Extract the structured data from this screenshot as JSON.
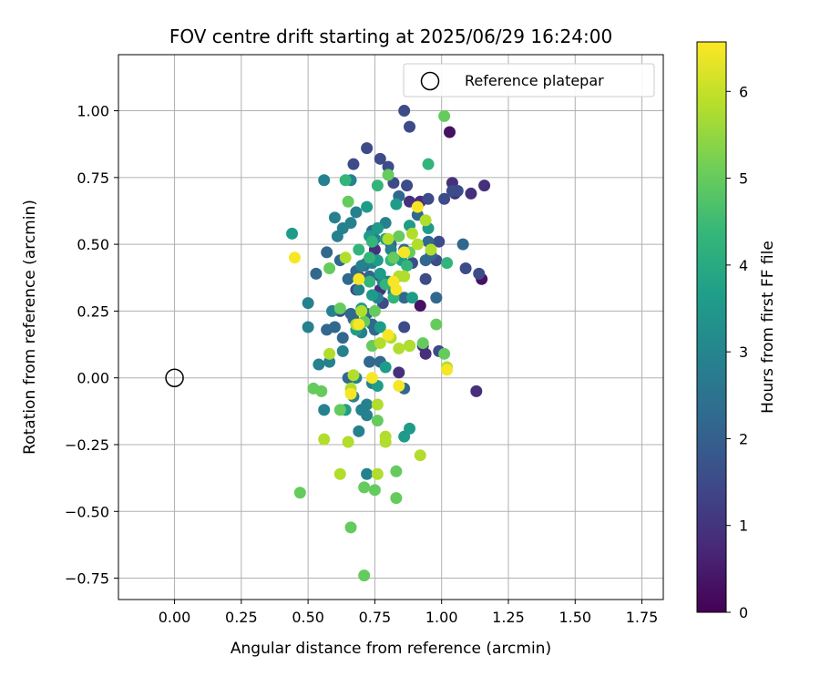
{
  "chart_data": {
    "type": "scatter",
    "title": "FOV centre drift starting at 2025/06/29 16:24:00",
    "xlabel": "Angular distance from reference (arcmin)",
    "ylabel": "Rotation from reference (arcmin)",
    "xlim": [
      -0.21,
      1.83
    ],
    "ylim": [
      -0.83,
      1.21
    ],
    "x_ticks": [
      0.0,
      0.25,
      0.5,
      0.75,
      1.0,
      1.25,
      1.5,
      1.75
    ],
    "x_tick_labels": [
      "0.00",
      "0.25",
      "0.50",
      "0.75",
      "1.00",
      "1.25",
      "1.50",
      "1.75"
    ],
    "y_ticks": [
      -0.75,
      -0.5,
      -0.25,
      0.0,
      0.25,
      0.5,
      0.75,
      1.0
    ],
    "y_tick_labels": [
      "−0.75",
      "−0.50",
      "−0.25",
      "0.00",
      "0.25",
      "0.50",
      "0.75",
      "1.00"
    ],
    "grid": true,
    "legend": {
      "placement": "upper-right",
      "entries": [
        "Reference platepar"
      ]
    },
    "reference_point": {
      "x": 0.0,
      "y": 0.0
    },
    "colorbar": {
      "label": "Hours from first FF file",
      "colormap": "viridis",
      "range": [
        0,
        6.57
      ],
      "ticks": [
        0,
        1,
        2,
        3,
        4,
        5,
        6
      ],
      "tick_labels": [
        "0",
        "1",
        "2",
        "3",
        "4",
        "5",
        "6"
      ]
    },
    "colormap_stops": [
      "#440154",
      "#482878",
      "#3e4989",
      "#31688e",
      "#26828e",
      "#1f9e89",
      "#35b779",
      "#6ece58",
      "#b5de2b",
      "#fde725"
    ],
    "series": [
      {
        "hours": 0.3,
        "points": [
          [
            1.03,
            0.92
          ],
          [
            0.92,
            0.27
          ],
          [
            1.15,
            0.37
          ]
        ]
      },
      {
        "hours": 0.9,
        "points": [
          [
            0.88,
            0.66
          ],
          [
            0.92,
            0.66
          ],
          [
            1.04,
            0.73
          ],
          [
            1.16,
            0.72
          ],
          [
            1.11,
            0.69
          ],
          [
            0.84,
            0.02
          ],
          [
            0.94,
            0.09
          ],
          [
            0.93,
            0.12
          ],
          [
            1.13,
            -0.05
          ],
          [
            0.75,
            0.48
          ],
          [
            0.69,
            0.38
          ],
          [
            0.77,
            0.33
          ],
          [
            1.05,
            0.69
          ]
        ]
      },
      {
        "hours": 1.5,
        "points": [
          [
            0.67,
            0.8
          ],
          [
            0.72,
            0.86
          ],
          [
            0.77,
            0.82
          ],
          [
            0.8,
            0.79
          ],
          [
            0.82,
            0.73
          ],
          [
            0.87,
            0.72
          ],
          [
            0.95,
            0.67
          ],
          [
            0.99,
            0.51
          ],
          [
            1.01,
            0.67
          ],
          [
            1.04,
            0.7
          ],
          [
            1.06,
            0.7
          ],
          [
            1.09,
            0.41
          ],
          [
            1.14,
            0.39
          ],
          [
            0.98,
            0.44
          ],
          [
            0.94,
            0.37
          ],
          [
            0.77,
            0.38
          ],
          [
            0.86,
            0.19
          ],
          [
            0.89,
            0.43
          ],
          [
            0.86,
            1.0
          ],
          [
            0.88,
            0.94
          ],
          [
            0.72,
            0.43
          ],
          [
            0.68,
            0.33
          ],
          [
            0.78,
            0.28
          ],
          [
            0.99,
            0.1
          ],
          [
            0.62,
            0.25
          ]
        ]
      },
      {
        "hours": 2.2,
        "points": [
          [
            0.57,
            0.47
          ],
          [
            0.53,
            0.39
          ],
          [
            0.62,
            0.44
          ],
          [
            0.68,
            0.4
          ],
          [
            0.71,
            0.42
          ],
          [
            0.84,
            0.68
          ],
          [
            0.91,
            0.61
          ],
          [
            0.86,
            0.3
          ],
          [
            0.73,
            0.38
          ],
          [
            0.65,
            0.37
          ],
          [
            0.66,
            0.24
          ],
          [
            0.6,
            0.19
          ],
          [
            0.67,
            0.22
          ],
          [
            0.72,
            0.24
          ],
          [
            0.74,
            0.2
          ],
          [
            0.63,
            0.15
          ],
          [
            0.75,
            0.18
          ],
          [
            0.57,
            0.18
          ],
          [
            0.65,
            0.0
          ],
          [
            0.77,
            0.06
          ],
          [
            0.73,
            0.06
          ],
          [
            0.86,
            -0.04
          ],
          [
            0.94,
            0.44
          ],
          [
            0.96,
            0.46
          ],
          [
            0.98,
            0.3
          ],
          [
            1.08,
            0.5
          ],
          [
            0.95,
            0.51
          ],
          [
            0.81,
            0.5
          ],
          [
            0.86,
            0.48
          ],
          [
            0.74,
            0.55
          ]
        ]
      },
      {
        "hours": 2.9,
        "points": [
          [
            0.66,
            0.74
          ],
          [
            0.56,
            0.74
          ],
          [
            0.68,
            0.62
          ],
          [
            0.66,
            0.58
          ],
          [
            0.6,
            0.6
          ],
          [
            0.63,
            0.56
          ],
          [
            0.61,
            0.53
          ],
          [
            0.75,
            0.52
          ],
          [
            0.7,
            0.42
          ],
          [
            0.59,
            0.25
          ],
          [
            0.5,
            0.28
          ],
          [
            0.5,
            0.19
          ],
          [
            0.63,
            0.1
          ],
          [
            0.58,
            0.06
          ],
          [
            0.54,
            0.05
          ],
          [
            0.68,
            0.0
          ],
          [
            0.74,
            -0.02
          ],
          [
            0.72,
            -0.1
          ],
          [
            0.7,
            -0.12
          ],
          [
            0.72,
            -0.14
          ],
          [
            0.69,
            -0.2
          ],
          [
            0.72,
            -0.36
          ],
          [
            0.56,
            -0.12
          ],
          [
            0.67,
            -0.07
          ],
          [
            0.79,
            0.58
          ],
          [
            0.76,
            0.56
          ],
          [
            0.81,
            0.48
          ],
          [
            0.74,
            0.43
          ],
          [
            0.8,
            0.36
          ],
          [
            0.82,
            0.32
          ],
          [
            0.76,
            0.3
          ],
          [
            0.7,
            0.17
          ],
          [
            0.78,
            0.36
          ],
          [
            0.69,
            0.33
          ]
        ]
      },
      {
        "hours": 3.6,
        "points": [
          [
            0.44,
            0.54
          ],
          [
            0.72,
            0.64
          ],
          [
            0.76,
            0.56
          ],
          [
            0.73,
            0.53
          ],
          [
            0.79,
            0.52
          ],
          [
            0.83,
            0.65
          ],
          [
            0.88,
            0.57
          ],
          [
            0.95,
            0.56
          ],
          [
            0.85,
            0.44
          ],
          [
            0.76,
            0.44
          ],
          [
            0.77,
            0.39
          ],
          [
            0.74,
            0.31
          ],
          [
            0.7,
            0.26
          ],
          [
            0.68,
            0.18
          ],
          [
            0.77,
            0.19
          ],
          [
            0.79,
            0.04
          ],
          [
            0.76,
            -0.03
          ],
          [
            0.64,
            -0.12
          ],
          [
            0.88,
            0.12
          ],
          [
            0.89,
            0.3
          ],
          [
            0.86,
            -0.22
          ],
          [
            0.88,
            -0.19
          ]
        ]
      },
      {
        "hours": 4.3,
        "points": [
          [
            0.76,
            0.72
          ],
          [
            0.95,
            0.8
          ],
          [
            0.64,
            0.74
          ],
          [
            1.02,
            0.43
          ],
          [
            0.73,
            0.45
          ],
          [
            0.73,
            0.36
          ],
          [
            0.81,
            0.44
          ],
          [
            0.69,
            0.48
          ],
          [
            0.79,
            0.35
          ],
          [
            0.82,
            0.3
          ],
          [
            0.87,
            0.42
          ],
          [
            0.74,
            0.51
          ]
        ]
      },
      {
        "hours": 5.0,
        "points": [
          [
            0.65,
            0.66
          ],
          [
            0.8,
            0.76
          ],
          [
            0.52,
            -0.04
          ],
          [
            0.55,
            -0.05
          ],
          [
            0.62,
            0.26
          ],
          [
            0.58,
            0.41
          ],
          [
            0.47,
            -0.43
          ],
          [
            0.66,
            -0.56
          ],
          [
            0.71,
            -0.74
          ],
          [
            0.71,
            -0.41
          ],
          [
            0.75,
            -0.42
          ],
          [
            0.83,
            -0.45
          ],
          [
            0.83,
            -0.35
          ],
          [
            0.76,
            -0.16
          ],
          [
            0.62,
            -0.12
          ],
          [
            0.93,
            0.13
          ],
          [
            0.98,
            0.2
          ],
          [
            1.01,
            0.09
          ],
          [
            0.75,
            0.25
          ],
          [
            0.82,
            0.45
          ],
          [
            0.84,
            0.53
          ],
          [
            1.01,
            0.98
          ],
          [
            0.71,
            0.21
          ],
          [
            0.74,
            0.12
          ],
          [
            0.88,
            0.47
          ]
        ]
      },
      {
        "hours": 5.8,
        "points": [
          [
            0.58,
            0.09
          ],
          [
            0.62,
            -0.36
          ],
          [
            0.56,
            -0.23
          ],
          [
            0.65,
            -0.24
          ],
          [
            0.76,
            -0.36
          ],
          [
            0.79,
            -0.22
          ],
          [
            0.79,
            -0.24
          ],
          [
            0.77,
            0.13
          ],
          [
            0.67,
            0.01
          ],
          [
            0.66,
            -0.04
          ],
          [
            0.64,
            0.45
          ],
          [
            0.68,
            0.2
          ],
          [
            0.7,
            0.25
          ],
          [
            0.86,
            0.38
          ],
          [
            0.89,
            0.54
          ],
          [
            0.91,
            0.5
          ],
          [
            0.94,
            0.59
          ],
          [
            0.84,
            0.11
          ],
          [
            0.88,
            0.12
          ],
          [
            0.96,
            0.48
          ],
          [
            0.84,
            0.38
          ],
          [
            0.8,
            0.52
          ],
          [
            0.76,
            -0.1
          ],
          [
            0.81,
            0.15
          ],
          [
            1.02,
            0.04
          ],
          [
            0.92,
            -0.29
          ]
        ]
      },
      {
        "hours": 6.5,
        "points": [
          [
            0.45,
            0.45
          ],
          [
            0.69,
            0.37
          ],
          [
            0.91,
            0.64
          ],
          [
            0.86,
            0.47
          ],
          [
            0.83,
            0.33
          ],
          [
            0.8,
            0.16
          ],
          [
            0.74,
            0.0
          ],
          [
            0.69,
            0.2
          ],
          [
            0.66,
            -0.06
          ],
          [
            0.84,
            -0.03
          ],
          [
            1.02,
            0.03
          ],
          [
            0.82,
            0.36
          ]
        ]
      }
    ]
  }
}
